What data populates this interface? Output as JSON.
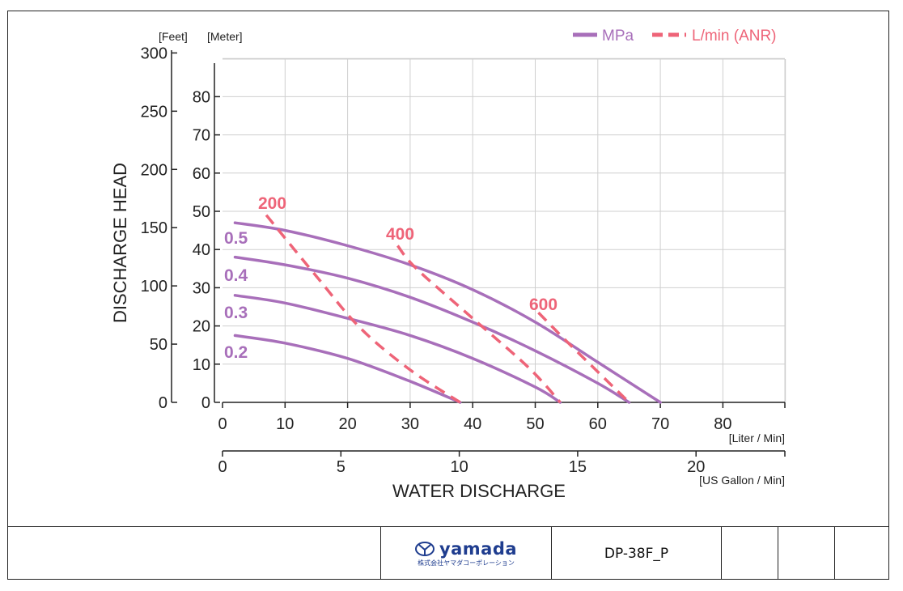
{
  "chart_data": {
    "type": "line",
    "xlabel": "WATER DISCHARGE",
    "ylabel": "DISCHARGE HEAD",
    "x_unit_primary": "[Liter / Min]",
    "x_unit_secondary": "[US Gallon / Min]",
    "y_unit_feet": "[Feet]",
    "y_unit_meter": "[Meter]",
    "xlim": [
      0,
      90
    ],
    "ylim": [
      0,
      92
    ],
    "x_ticks": [
      "0",
      "10",
      "20",
      "30",
      "40",
      "50",
      "60",
      "70",
      "80"
    ],
    "x_ticks_gallon": [
      "0",
      "5",
      "10",
      "15",
      "20"
    ],
    "y_ticks_meter": [
      "0",
      "10",
      "20",
      "30",
      "40",
      "50",
      "60",
      "70",
      "80"
    ],
    "y_ticks_feet": [
      "0",
      "50",
      "100",
      "150",
      "200",
      "250",
      "300"
    ],
    "grid": true,
    "legend_position": "top-right",
    "legend": [
      {
        "label": "MPa",
        "color": "#a86fba",
        "style": "solid"
      },
      {
        "label": "L/min (ANR)",
        "color": "#ee6478",
        "style": "dashed"
      }
    ],
    "pressure_series": [
      {
        "name": "0.5",
        "x": [
          2,
          10,
          20,
          30,
          40,
          50,
          60,
          70
        ],
        "y": [
          47,
          45,
          41,
          36,
          29.5,
          21,
          10.5,
          0
        ]
      },
      {
        "name": "0.4",
        "x": [
          2,
          10,
          20,
          30,
          40,
          50,
          60,
          65
        ],
        "y": [
          38,
          36,
          32.5,
          27.5,
          21,
          13.5,
          5,
          0
        ]
      },
      {
        "name": "0.3",
        "x": [
          2,
          10,
          20,
          30,
          40,
          50,
          54
        ],
        "y": [
          28,
          26,
          22,
          17.5,
          11.5,
          4,
          0
        ]
      },
      {
        "name": "0.2",
        "x": [
          2,
          10,
          20,
          30,
          38
        ],
        "y": [
          17.5,
          15.5,
          11.5,
          5.5,
          0
        ]
      }
    ],
    "air_series": [
      {
        "name": "200",
        "x": [
          7,
          15,
          22,
          30,
          38
        ],
        "y": [
          49,
          33,
          19.5,
          8.5,
          0
        ]
      },
      {
        "name": "400",
        "x": [
          28,
          31,
          40,
          49,
          54
        ],
        "y": [
          41,
          35,
          22,
          9,
          0
        ]
      },
      {
        "name": "600",
        "x": [
          50.5,
          55,
          60,
          65
        ],
        "y": [
          23.5,
          16,
          8,
          0
        ]
      }
    ],
    "pressure_labels": [
      "0.5",
      "0.4",
      "0.3",
      "0.2"
    ],
    "air_labels": [
      "200",
      "400",
      "600"
    ]
  },
  "footer": {
    "logo_brand": "yamada",
    "logo_subtitle": "株式会社ヤマダコーポレーション",
    "model": "DP-38F_P"
  },
  "colors": {
    "pressure": "#a86fba",
    "air": "#ee6478",
    "grid": "#cfcfcf",
    "brand": "#1f3d8f"
  }
}
